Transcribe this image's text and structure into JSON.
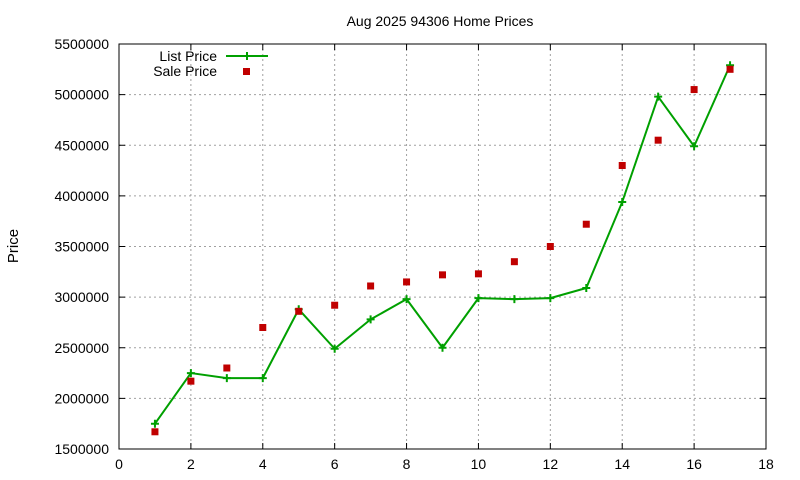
{
  "chart_data": {
    "type": "line",
    "title": "Aug 2025 94306 Home Prices",
    "xlabel": "",
    "ylabel": "Price",
    "xlim": [
      0,
      18
    ],
    "ylim": [
      1500000,
      5500000
    ],
    "x_ticks": [
      0,
      2,
      4,
      6,
      8,
      10,
      12,
      14,
      16,
      18
    ],
    "y_ticks": [
      1500000,
      2000000,
      2500000,
      3000000,
      3500000,
      4000000,
      4500000,
      5000000,
      5500000
    ],
    "grid": true,
    "legend_position": "top-left",
    "series": [
      {
        "name": "List Price",
        "style": "line-with-plus-markers",
        "color": "#00a000",
        "x": [
          1,
          2,
          3,
          4,
          5,
          6,
          7,
          8,
          9,
          10,
          11,
          12,
          13,
          14,
          15,
          16,
          17
        ],
        "y": [
          1750000,
          2250000,
          2200000,
          2200000,
          2880000,
          2490000,
          2780000,
          2980000,
          2500000,
          2990000,
          2980000,
          2990000,
          3090000,
          3940000,
          4980000,
          4490000,
          5290000
        ]
      },
      {
        "name": "Sale Price",
        "style": "square-markers",
        "color": "#c00000",
        "x": [
          1,
          2,
          3,
          4,
          5,
          6,
          7,
          8,
          9,
          10,
          11,
          12,
          13,
          14,
          15,
          16,
          17
        ],
        "y": [
          1670000,
          2170000,
          2300000,
          2700000,
          2860000,
          2920000,
          3110000,
          3150000,
          3220000,
          3230000,
          3350000,
          3500000,
          3720000,
          4300000,
          4550000,
          5050000,
          5250000
        ]
      }
    ]
  }
}
